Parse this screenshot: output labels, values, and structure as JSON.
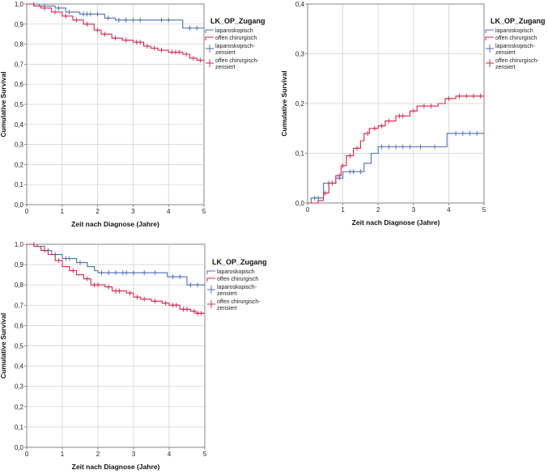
{
  "chart_data": [
    {
      "type": "line",
      "subtype": "kaplan-meier",
      "title": "",
      "xlabel": "Zeit nach Diagnose (Jahre)",
      "ylabel": "Cumulative Survival",
      "xlim": [
        0,
        5
      ],
      "ylim": [
        0,
        1
      ],
      "xticks": [
        "0",
        "1",
        "2",
        "3",
        "4",
        "5"
      ],
      "yticks": [
        "0,0",
        "0,1",
        "0,2",
        "0,3",
        "0,4",
        "0,5",
        "0,6",
        "0,7",
        "0,8",
        "0,9",
        "1,0"
      ],
      "grid": true,
      "legend_position": "right",
      "legend_title": "LK_OP_Zugang",
      "legend": [
        "laparoskopisch",
        "offen chirurgisch",
        "laparoskopisch-zensiert",
        "offen chirurgisch-zensiert"
      ],
      "series": [
        {
          "name": "laparoskopisch",
          "color": "#4a6fb5",
          "steps": [
            [
              0,
              1.0
            ],
            [
              0.35,
              0.99
            ],
            [
              0.8,
              0.98
            ],
            [
              1.1,
              0.96
            ],
            [
              1.5,
              0.95
            ],
            [
              2.2,
              0.93
            ],
            [
              2.5,
              0.92
            ],
            [
              4.4,
              0.88
            ],
            [
              5,
              0.88
            ]
          ],
          "censored": [
            [
              0.2,
              1.0
            ],
            [
              0.5,
              0.99
            ],
            [
              0.9,
              0.98
            ],
            [
              1.2,
              0.96
            ],
            [
              1.6,
              0.95
            ],
            [
              1.7,
              0.95
            ],
            [
              1.8,
              0.95
            ],
            [
              2.0,
              0.95
            ],
            [
              2.3,
              0.93
            ],
            [
              2.6,
              0.92
            ],
            [
              2.8,
              0.92
            ],
            [
              3.0,
              0.92
            ],
            [
              3.2,
              0.92
            ],
            [
              3.8,
              0.92
            ],
            [
              4.0,
              0.92
            ],
            [
              4.6,
              0.88
            ],
            [
              4.8,
              0.88
            ]
          ]
        },
        {
          "name": "offen chirurgisch",
          "color": "#d8204a",
          "steps": [
            [
              0,
              1.0
            ],
            [
              0.2,
              0.99
            ],
            [
              0.4,
              0.98
            ],
            [
              0.7,
              0.96
            ],
            [
              1.0,
              0.94
            ],
            [
              1.3,
              0.92
            ],
            [
              1.6,
              0.9
            ],
            [
              1.9,
              0.87
            ],
            [
              2.1,
              0.85
            ],
            [
              2.4,
              0.83
            ],
            [
              2.7,
              0.82
            ],
            [
              3.0,
              0.81
            ],
            [
              3.3,
              0.79
            ],
            [
              3.5,
              0.78
            ],
            [
              3.7,
              0.77
            ],
            [
              4.0,
              0.76
            ],
            [
              4.4,
              0.75
            ],
            [
              4.6,
              0.73
            ],
            [
              4.8,
              0.72
            ],
            [
              5,
              0.72
            ]
          ],
          "censored": [
            [
              0.5,
              0.98
            ],
            [
              0.8,
              0.96
            ],
            [
              1.1,
              0.94
            ],
            [
              1.4,
              0.92
            ],
            [
              1.7,
              0.9
            ],
            [
              2.0,
              0.87
            ],
            [
              2.2,
              0.85
            ],
            [
              2.5,
              0.83
            ],
            [
              2.8,
              0.82
            ],
            [
              3.1,
              0.81
            ],
            [
              3.2,
              0.81
            ],
            [
              3.4,
              0.79
            ],
            [
              3.6,
              0.78
            ],
            [
              3.8,
              0.77
            ],
            [
              4.1,
              0.76
            ],
            [
              4.2,
              0.76
            ],
            [
              4.3,
              0.76
            ],
            [
              4.5,
              0.75
            ],
            [
              4.7,
              0.73
            ],
            [
              4.9,
              0.72
            ]
          ]
        }
      ]
    },
    {
      "type": "line",
      "subtype": "kaplan-meier",
      "title": "",
      "xlabel": "Zeit nach Diagnose (Jahre)",
      "ylabel": "Cumulative Survival",
      "xlim": [
        0,
        5
      ],
      "ylim": [
        0,
        0.4
      ],
      "xticks": [
        "0",
        "1",
        "2",
        "3",
        "4",
        "5"
      ],
      "yticks": [
        "0,0",
        "0,1",
        "0,2",
        "0,3",
        "0,4"
      ],
      "grid": true,
      "legend_position": "right",
      "legend_title": "LK_OP_Zugang",
      "legend": [
        "laparoskopisch",
        "offen chirurgisch",
        "laparoskopisch-zensiert",
        "offen chirurgisch-zensiert"
      ],
      "series": [
        {
          "name": "laparoskopisch",
          "color": "#4a6fb5",
          "steps": [
            [
              0,
              0
            ],
            [
              0.1,
              0.01
            ],
            [
              0.45,
              0.04
            ],
            [
              0.8,
              0.05
            ],
            [
              1.0,
              0.063
            ],
            [
              1.6,
              0.08
            ],
            [
              1.8,
              0.1
            ],
            [
              2.0,
              0.113
            ],
            [
              3.95,
              0.14
            ],
            [
              5,
              0.14
            ]
          ],
          "censored": [
            [
              0.2,
              0.01
            ],
            [
              0.3,
              0.01
            ],
            [
              0.6,
              0.04
            ],
            [
              0.9,
              0.05
            ],
            [
              1.2,
              0.063
            ],
            [
              1.3,
              0.063
            ],
            [
              1.5,
              0.063
            ],
            [
              2.1,
              0.113
            ],
            [
              2.3,
              0.113
            ],
            [
              2.5,
              0.113
            ],
            [
              2.7,
              0.113
            ],
            [
              2.9,
              0.113
            ],
            [
              3.2,
              0.113
            ],
            [
              3.6,
              0.113
            ],
            [
              4.2,
              0.14
            ],
            [
              4.4,
              0.14
            ],
            [
              4.6,
              0.14
            ],
            [
              4.8,
              0.14
            ]
          ]
        },
        {
          "name": "offen chirurgisch",
          "color": "#d8204a",
          "steps": [
            [
              0,
              0
            ],
            [
              0.3,
              0.005
            ],
            [
              0.45,
              0.02
            ],
            [
              0.6,
              0.04
            ],
            [
              0.8,
              0.055
            ],
            [
              0.95,
              0.075
            ],
            [
              1.1,
              0.095
            ],
            [
              1.3,
              0.11
            ],
            [
              1.5,
              0.125
            ],
            [
              1.6,
              0.14
            ],
            [
              1.75,
              0.15
            ],
            [
              2.0,
              0.155
            ],
            [
              2.2,
              0.165
            ],
            [
              2.5,
              0.175
            ],
            [
              2.9,
              0.185
            ],
            [
              3.1,
              0.195
            ],
            [
              3.7,
              0.2
            ],
            [
              3.9,
              0.21
            ],
            [
              4.2,
              0.215
            ],
            [
              5,
              0.215
            ]
          ],
          "censored": [
            [
              0.5,
              0.02
            ],
            [
              0.7,
              0.04
            ],
            [
              0.9,
              0.055
            ],
            [
              1.0,
              0.075
            ],
            [
              1.2,
              0.095
            ],
            [
              1.4,
              0.11
            ],
            [
              1.7,
              0.14
            ],
            [
              1.9,
              0.15
            ],
            [
              2.1,
              0.155
            ],
            [
              2.3,
              0.165
            ],
            [
              2.6,
              0.175
            ],
            [
              2.7,
              0.175
            ],
            [
              3.0,
              0.185
            ],
            [
              3.3,
              0.195
            ],
            [
              3.5,
              0.195
            ],
            [
              4.0,
              0.21
            ],
            [
              4.3,
              0.215
            ],
            [
              4.5,
              0.215
            ],
            [
              4.7,
              0.215
            ],
            [
              4.9,
              0.215
            ]
          ]
        }
      ]
    },
    {
      "type": "line",
      "subtype": "kaplan-meier",
      "title": "",
      "xlabel": "Zeit nach Diagnose (Jahre)",
      "ylabel": "Cumulative Survival",
      "xlim": [
        0,
        5
      ],
      "ylim": [
        0,
        1
      ],
      "xticks": [
        "0",
        "1",
        "2",
        "3",
        "4",
        "5"
      ],
      "yticks": [
        "0,0",
        "0,1",
        "0,2",
        "0,3",
        "0,4",
        "0,5",
        "0,6",
        "0,7",
        "0,8",
        "0,9",
        "1,0"
      ],
      "grid": true,
      "legend_position": "right",
      "legend_title": "LK_OP_Zugang",
      "legend": [
        "laparoskopisch",
        "offen chirurgisch",
        "laparoskopisch-zensiert",
        "offen chirurgisch-zensiert"
      ],
      "series": [
        {
          "name": "laparoskopisch",
          "color": "#4a6fb5",
          "steps": [
            [
              0,
              1.0
            ],
            [
              0.3,
              0.99
            ],
            [
              0.5,
              0.97
            ],
            [
              0.7,
              0.95
            ],
            [
              1.0,
              0.93
            ],
            [
              1.4,
              0.91
            ],
            [
              1.7,
              0.89
            ],
            [
              1.9,
              0.87
            ],
            [
              2.0,
              0.86
            ],
            [
              3.95,
              0.84
            ],
            [
              4.5,
              0.8
            ],
            [
              5,
              0.8
            ]
          ],
          "censored": [
            [
              0.2,
              1.0
            ],
            [
              0.6,
              0.97
            ],
            [
              0.8,
              0.95
            ],
            [
              1.1,
              0.93
            ],
            [
              1.2,
              0.93
            ],
            [
              1.5,
              0.91
            ],
            [
              2.1,
              0.86
            ],
            [
              2.3,
              0.86
            ],
            [
              2.5,
              0.86
            ],
            [
              2.7,
              0.86
            ],
            [
              2.8,
              0.86
            ],
            [
              3.0,
              0.86
            ],
            [
              3.3,
              0.86
            ],
            [
              3.6,
              0.86
            ],
            [
              4.1,
              0.84
            ],
            [
              4.3,
              0.84
            ],
            [
              4.6,
              0.8
            ],
            [
              4.8,
              0.8
            ]
          ]
        },
        {
          "name": "offen chirurgisch",
          "color": "#d8204a",
          "steps": [
            [
              0,
              1.0
            ],
            [
              0.2,
              0.99
            ],
            [
              0.4,
              0.97
            ],
            [
              0.6,
              0.95
            ],
            [
              0.8,
              0.92
            ],
            [
              1.0,
              0.89
            ],
            [
              1.2,
              0.87
            ],
            [
              1.4,
              0.85
            ],
            [
              1.6,
              0.83
            ],
            [
              1.8,
              0.8
            ],
            [
              2.2,
              0.79
            ],
            [
              2.4,
              0.77
            ],
            [
              2.8,
              0.76
            ],
            [
              3.0,
              0.74
            ],
            [
              3.2,
              0.73
            ],
            [
              3.5,
              0.72
            ],
            [
              3.8,
              0.71
            ],
            [
              4.0,
              0.7
            ],
            [
              4.3,
              0.68
            ],
            [
              4.6,
              0.67
            ],
            [
              4.75,
              0.66
            ],
            [
              5,
              0.66
            ]
          ],
          "censored": [
            [
              0.5,
              0.97
            ],
            [
              0.9,
              0.92
            ],
            [
              1.3,
              0.87
            ],
            [
              1.7,
              0.83
            ],
            [
              1.9,
              0.8
            ],
            [
              2.0,
              0.8
            ],
            [
              2.3,
              0.79
            ],
            [
              2.5,
              0.77
            ],
            [
              2.6,
              0.77
            ],
            [
              2.9,
              0.76
            ],
            [
              3.1,
              0.74
            ],
            [
              3.3,
              0.73
            ],
            [
              3.6,
              0.72
            ],
            [
              3.9,
              0.71
            ],
            [
              4.1,
              0.7
            ],
            [
              4.2,
              0.7
            ],
            [
              4.4,
              0.68
            ],
            [
              4.5,
              0.68
            ],
            [
              4.7,
              0.67
            ],
            [
              4.8,
              0.66
            ],
            [
              4.9,
              0.66
            ]
          ]
        }
      ]
    }
  ]
}
